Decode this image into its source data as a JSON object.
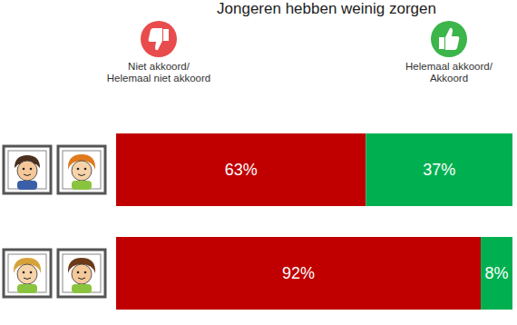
{
  "chart_data": {
    "type": "bar",
    "title": "Jongeren hebben weinig zorgen",
    "orientation": "horizontal",
    "stacked": true,
    "data_labels": true,
    "tick_labels": false,
    "categories": [
      null,
      null
    ],
    "xlim": [
      0,
      100
    ],
    "series": [
      {
        "name": "Niet akkoord/ Helemaal niet akkoord",
        "color": "#c00000",
        "values": [
          63,
          92
        ],
        "value_labels": [
          "63%",
          "92%"
        ]
      },
      {
        "name": "Helemaal akkoord/ Akkoord",
        "color": "#00b050",
        "values": [
          37,
          8
        ],
        "value_labels": [
          "37%",
          "8%"
        ]
      }
    ]
  }
}
